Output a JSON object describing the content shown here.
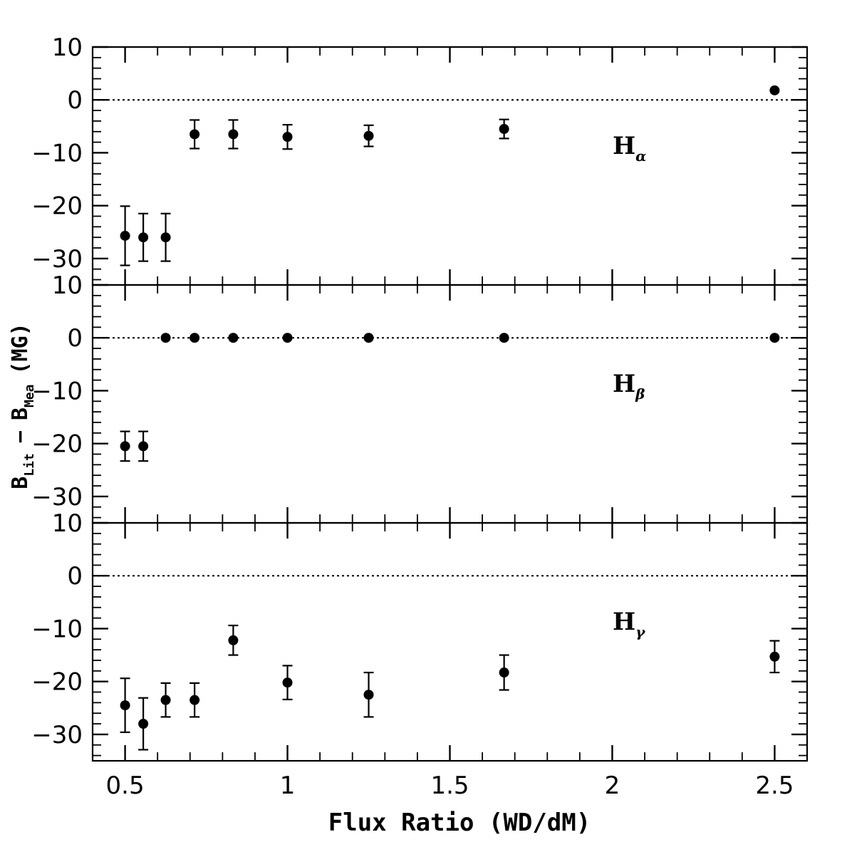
{
  "chart_data": {
    "type": "scatter",
    "xlabel": "Flux Ratio (WD/dM)",
    "ylabel": {
      "main_B1": "B",
      "sub_1": "Lit",
      "minus": "−",
      "main_B2": "B",
      "sub_2": "Mea",
      "unit": "(MG)"
    },
    "xlim": [
      0.4,
      2.6
    ],
    "ylim": [
      -35,
      10
    ],
    "x_ticks": [
      0.5,
      1,
      1.5,
      2,
      2.5
    ],
    "x_tick_labels": [
      "0.5",
      "1",
      "1.5",
      "2",
      "2.5"
    ],
    "y_ticks": [
      10,
      0,
      -10,
      -20,
      -30
    ],
    "y_tick_labels": [
      "10",
      "0",
      "−10",
      "−20",
      "−30"
    ],
    "reference_line": 0,
    "panels": [
      {
        "label_main": "H",
        "label_sub": "α",
        "points": [
          {
            "x": 0.5,
            "y": -25.7,
            "err": 5.6
          },
          {
            "x": 0.556,
            "y": -26.0,
            "err": 4.5
          },
          {
            "x": 0.625,
            "y": -26.0,
            "err": 4.5
          },
          {
            "x": 0.714,
            "y": -6.5,
            "err": 2.7
          },
          {
            "x": 0.833,
            "y": -6.5,
            "err": 2.7
          },
          {
            "x": 1.0,
            "y": -7.0,
            "err": 2.3
          },
          {
            "x": 1.25,
            "y": -6.8,
            "err": 2.0
          },
          {
            "x": 1.667,
            "y": -5.5,
            "err": 1.8
          },
          {
            "x": 2.5,
            "y": 1.8,
            "err": 0
          }
        ]
      },
      {
        "label_main": "H",
        "label_sub": "β",
        "points": [
          {
            "x": 0.5,
            "y": -20.5,
            "err": 2.8
          },
          {
            "x": 0.556,
            "y": -20.5,
            "err": 2.8
          },
          {
            "x": 0.625,
            "y": 0,
            "err": 0
          },
          {
            "x": 0.714,
            "y": 0,
            "err": 0
          },
          {
            "x": 0.833,
            "y": 0,
            "err": 0
          },
          {
            "x": 1.0,
            "y": 0,
            "err": 0
          },
          {
            "x": 1.25,
            "y": 0,
            "err": 0
          },
          {
            "x": 1.667,
            "y": 0,
            "err": 0
          },
          {
            "x": 2.5,
            "y": 0,
            "err": 0
          }
        ]
      },
      {
        "label_main": "H",
        "label_sub": "γ",
        "points": [
          {
            "x": 0.5,
            "y": -24.5,
            "err": 5.1
          },
          {
            "x": 0.556,
            "y": -28.0,
            "err": 4.9
          },
          {
            "x": 0.625,
            "y": -23.5,
            "err": 3.2
          },
          {
            "x": 0.714,
            "y": -23.5,
            "err": 3.2
          },
          {
            "x": 0.833,
            "y": -12.2,
            "err": 2.8
          },
          {
            "x": 1.0,
            "y": -20.2,
            "err": 3.2
          },
          {
            "x": 1.25,
            "y": -22.5,
            "err": 4.2
          },
          {
            "x": 1.667,
            "y": -18.3,
            "err": 3.3
          },
          {
            "x": 2.5,
            "y": -15.3,
            "err": 3.0
          }
        ]
      }
    ]
  }
}
